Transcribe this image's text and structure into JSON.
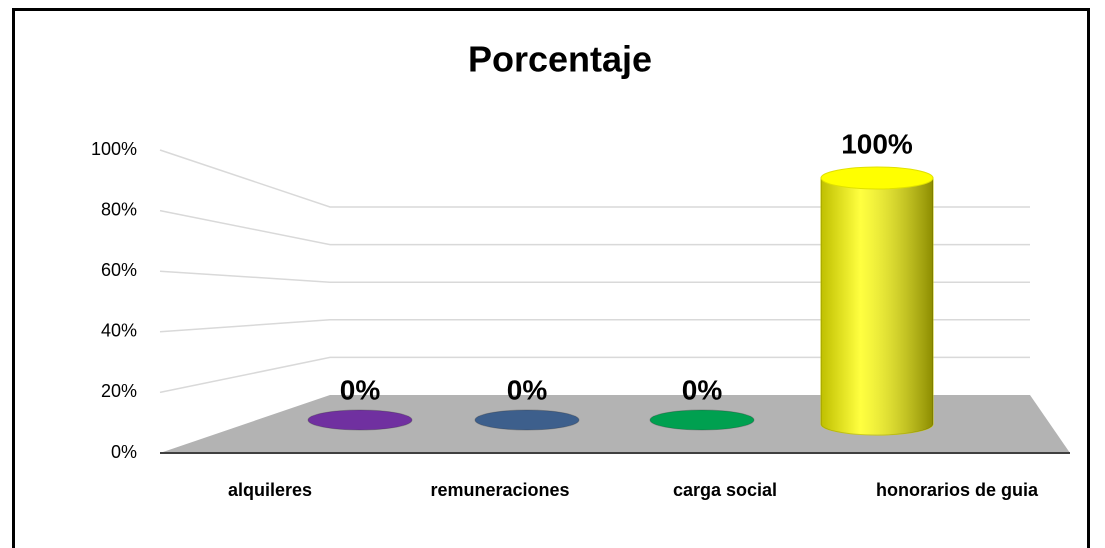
{
  "chart_data": {
    "type": "bar3d",
    "title": "Porcentaje",
    "categories": [
      "alquileres",
      "remuneraciones",
      "carga social",
      "honorarios de guia"
    ],
    "values": [
      0,
      0,
      0,
      100
    ],
    "value_labels": [
      "0%",
      "0%",
      "0%",
      "100%"
    ],
    "colors": [
      "#7030a0",
      "#3d5f8c",
      "#00a050",
      "#ffff00"
    ],
    "ylim": [
      0,
      100
    ],
    "yticks": [
      {
        "value": 0,
        "label": "0%"
      },
      {
        "value": 20,
        "label": "20%"
      },
      {
        "value": 40,
        "label": "40%"
      },
      {
        "value": 60,
        "label": "60%"
      },
      {
        "value": 80,
        "label": "80%"
      },
      {
        "value": 100,
        "label": "100%"
      }
    ],
    "grid": true
  }
}
